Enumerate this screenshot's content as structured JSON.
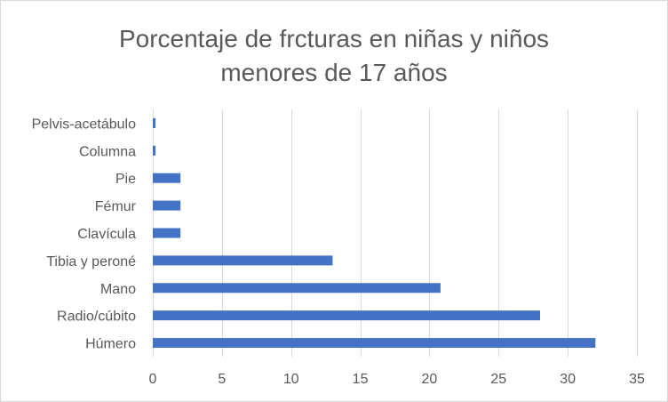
{
  "chart_data": {
    "type": "bar",
    "orientation": "horizontal",
    "title_lines": [
      "Porcentaje de frcturas en niñas y niños",
      "menores de 17 años"
    ],
    "categories": [
      "Húmero",
      "Radio/cúbito",
      "Mano",
      "Tibia y peroné",
      "Clavícula",
      "Fémur",
      "Pie",
      "Columna",
      "Pelvis-acetábulo"
    ],
    "values": [
      32,
      28,
      20.8,
      13,
      2,
      2,
      2,
      0.2,
      0.2
    ],
    "xlim": [
      0,
      35
    ],
    "xticks": [
      0,
      5,
      10,
      15,
      20,
      25,
      30,
      35
    ],
    "grid": "vertical",
    "legend": "none",
    "bar_color": "#4472c4"
  }
}
